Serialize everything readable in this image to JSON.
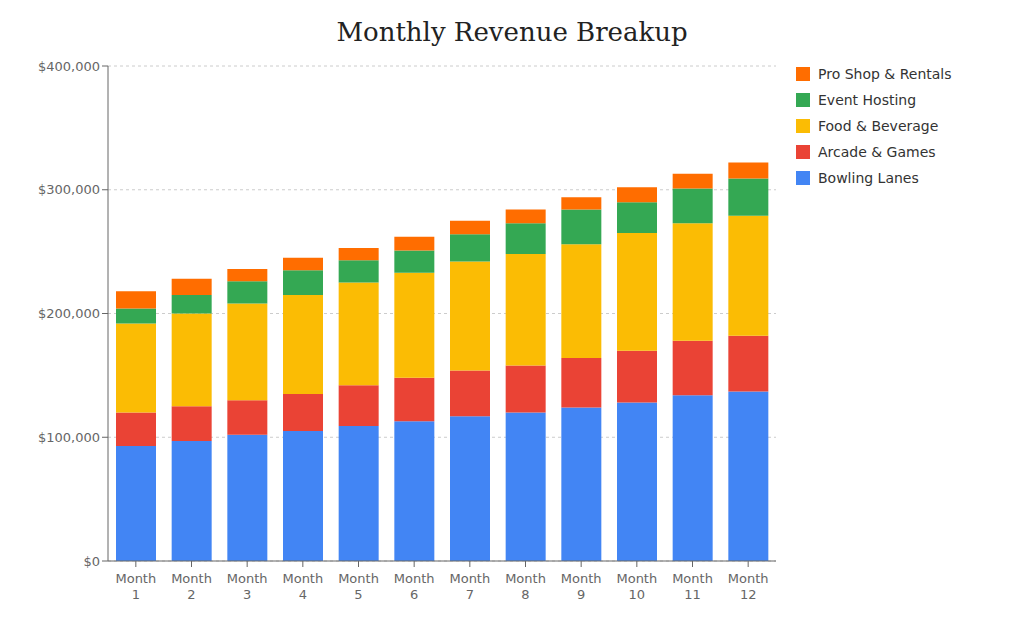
{
  "chart_data": {
    "type": "bar",
    "stacked": true,
    "title": "Monthly Revenue Breakup",
    "categories": [
      "Month\n1",
      "Month\n2",
      "Month\n3",
      "Month\n4",
      "Month\n5",
      "Month\n6",
      "Month\n7",
      "Month\n8",
      "Month\n9",
      "Month\n10",
      "Month\n11",
      "Month\n12"
    ],
    "series": [
      {
        "name": "Bowling Lanes",
        "color": "#4285F4",
        "values": [
          93000,
          97000,
          102000,
          105000,
          109000,
          113000,
          117000,
          120000,
          124000,
          128000,
          134000,
          137000
        ]
      },
      {
        "name": "Arcade & Games",
        "color": "#EA4335",
        "values": [
          27000,
          28000,
          28000,
          30000,
          33000,
          35000,
          37000,
          38000,
          40000,
          42000,
          44000,
          45000
        ]
      },
      {
        "name": "Food & Beverage",
        "color": "#FBBC04",
        "values": [
          72000,
          75000,
          78000,
          80000,
          83000,
          85000,
          88000,
          90000,
          92000,
          95000,
          95000,
          97000
        ]
      },
      {
        "name": "Event Hosting",
        "color": "#34A853",
        "values": [
          12000,
          15000,
          18000,
          20000,
          18000,
          18000,
          22000,
          25000,
          28000,
          25000,
          28000,
          30000
        ]
      },
      {
        "name": "Pro Shop & Rentals",
        "color": "#FF6D00",
        "values": [
          14000,
          13000,
          10000,
          10000,
          10000,
          11000,
          11000,
          11000,
          10000,
          12000,
          12000,
          13000
        ]
      }
    ],
    "ylim": [
      0,
      400000
    ],
    "yticks": [
      {
        "value": 0,
        "label": "$0"
      },
      {
        "value": 100000,
        "label": "$100,000"
      },
      {
        "value": 200000,
        "label": "$200,000"
      },
      {
        "value": 300000,
        "label": "$300,000"
      },
      {
        "value": 400000,
        "label": "$400,000"
      }
    ],
    "grid": true,
    "legend": "right"
  }
}
